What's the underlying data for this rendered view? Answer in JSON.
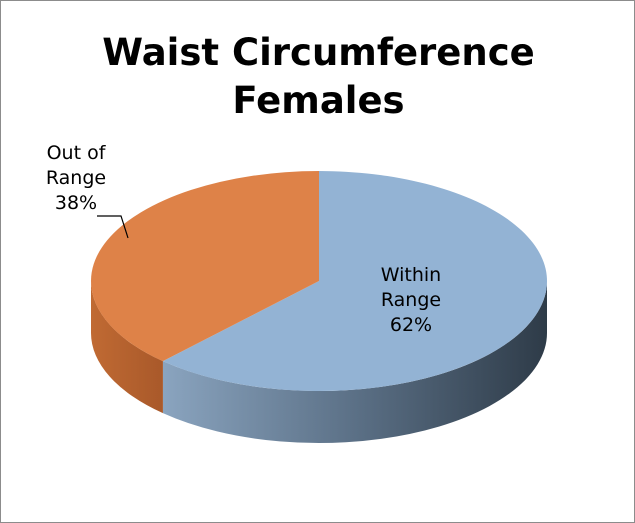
{
  "chart_data": {
    "type": "pie",
    "title": "Waist Circumference Females",
    "categories": [
      "Within Range",
      "Out of Range"
    ],
    "values": [
      62,
      38
    ],
    "value_labels": [
      "62%",
      "38%"
    ],
    "colors": [
      "#93b3d4",
      "#de8248"
    ]
  }
}
